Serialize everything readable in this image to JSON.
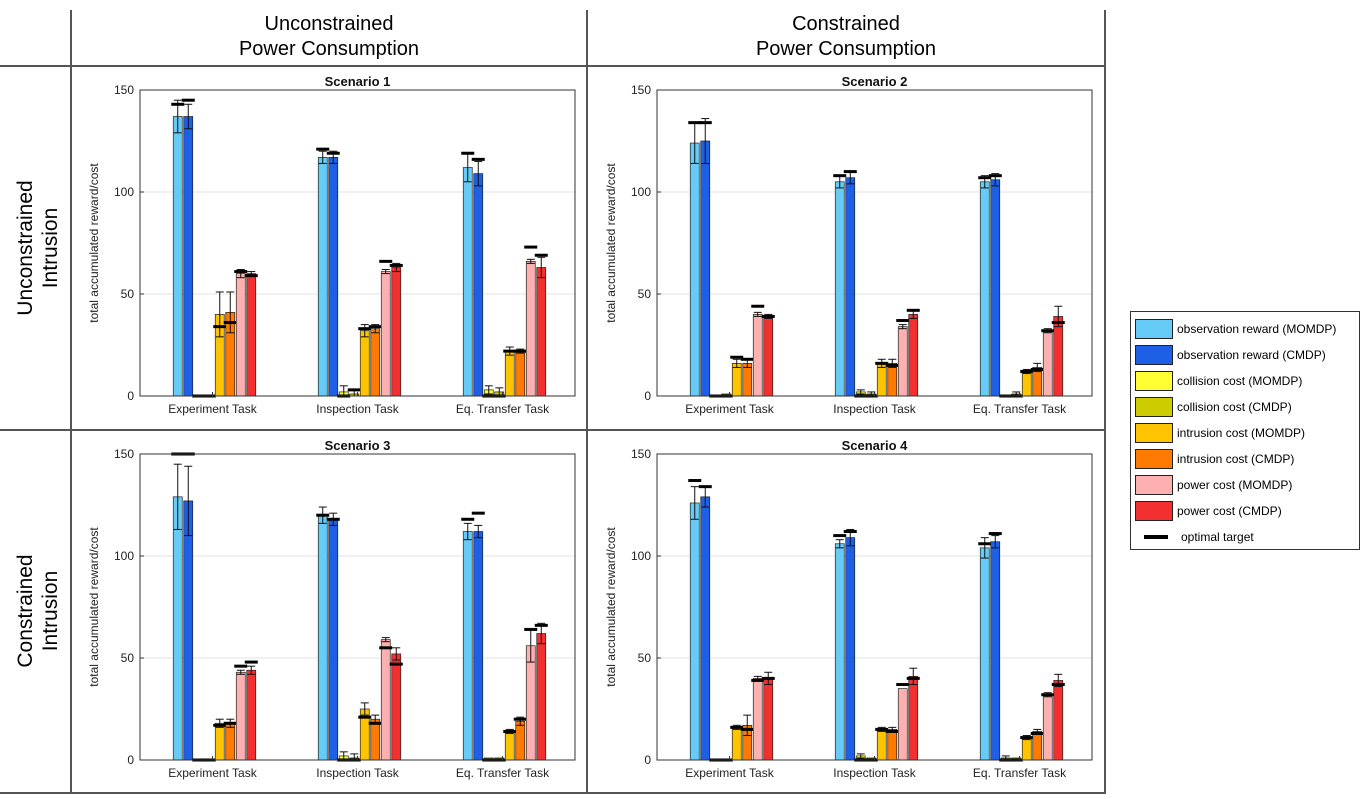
{
  "column_headers": [
    "Unconstrained\nPower Consumption",
    "Constrained\nPower Consumption"
  ],
  "row_headers": [
    "Unconstrained\nIntrusion",
    "Constrained\nIntrusion"
  ],
  "legend": {
    "items": [
      {
        "label": "observation reward (MOMDP)",
        "color": "#66ccf7"
      },
      {
        "label": "observation reward (CMDP)",
        "color": "#1e60e5"
      },
      {
        "label": "collision cost (MOMDP)",
        "color": "#ffff33"
      },
      {
        "label": "collision cost (CMDP)",
        "color": "#cccc00"
      },
      {
        "label": "intrusion cost (MOMDP)",
        "color": "#ffc400"
      },
      {
        "label": "intrusion cost (CMDP)",
        "color": "#ff7a00"
      },
      {
        "label": "power cost (MOMDP)",
        "color": "#fcb0b0"
      },
      {
        "label": "power cost (CMDP)",
        "color": "#f23030"
      }
    ],
    "target_label": "optimal target"
  },
  "chart_data": [
    {
      "type": "bar",
      "title": "Scenario 1",
      "ylabel": "total accumulated reward/cost",
      "xlabel": "",
      "ylim": [
        0,
        150
      ],
      "yticks": [
        0,
        50,
        100,
        150
      ],
      "grid": true,
      "categories": [
        "Experiment Task",
        "Inspection Task",
        "Eq. Transfer Task"
      ],
      "series": [
        {
          "name": "observation reward (MOMDP)",
          "values": [
            137,
            117,
            112
          ],
          "err": [
            8,
            3,
            7
          ]
        },
        {
          "name": "observation reward (CMDP)",
          "values": [
            137,
            117,
            109
          ],
          "err": [
            6,
            3,
            6
          ]
        },
        {
          "name": "collision cost (MOMDP)",
          "values": [
            0,
            2,
            3
          ],
          "err": [
            0,
            3,
            2
          ]
        },
        {
          "name": "collision cost (CMDP)",
          "values": [
            0,
            1,
            2
          ],
          "err": [
            0,
            2,
            2
          ]
        },
        {
          "name": "intrusion cost (MOMDP)",
          "values": [
            40,
            32,
            22
          ],
          "err": [
            11,
            3,
            2
          ]
        },
        {
          "name": "intrusion cost (CMDP)",
          "values": [
            41,
            33,
            22
          ],
          "err": [
            10,
            2,
            1
          ]
        },
        {
          "name": "power cost (MOMDP)",
          "values": [
            60,
            61,
            66
          ],
          "err": [
            2,
            1,
            1
          ]
        },
        {
          "name": "power cost (CMDP)",
          "values": [
            60,
            63,
            63
          ],
          "err": [
            1,
            2,
            5
          ]
        }
      ],
      "targets": [
        [
          143,
          121,
          119
        ],
        [
          145,
          119,
          116
        ],
        [
          0,
          0,
          0
        ],
        [
          0,
          3,
          0
        ],
        [
          34,
          33,
          22
        ],
        [
          36,
          34,
          22
        ],
        [
          61,
          66,
          73
        ],
        [
          59,
          64,
          69
        ]
      ]
    },
    {
      "type": "bar",
      "title": "Scenario 2",
      "ylabel": "total accumulated reward/cost",
      "xlabel": "",
      "ylim": [
        0,
        150
      ],
      "yticks": [
        0,
        50,
        100,
        150
      ],
      "grid": true,
      "categories": [
        "Experiment Task",
        "Inspection Task",
        "Eq. Transfer Task"
      ],
      "series": [
        {
          "name": "observation reward (MOMDP)",
          "values": [
            124,
            105,
            105
          ],
          "err": [
            10,
            3,
            3
          ]
        },
        {
          "name": "observation reward (CMDP)",
          "values": [
            125,
            107,
            106
          ],
          "err": [
            11,
            3,
            3
          ]
        },
        {
          "name": "collision cost (MOMDP)",
          "values": [
            0,
            2,
            0
          ],
          "err": [
            0,
            1,
            0
          ]
        },
        {
          "name": "collision cost (CMDP)",
          "values": [
            1,
            1,
            1
          ],
          "err": [
            0,
            1,
            1
          ]
        },
        {
          "name": "intrusion cost (MOMDP)",
          "values": [
            16,
            16,
            12
          ],
          "err": [
            2,
            2,
            1
          ]
        },
        {
          "name": "intrusion cost (CMDP)",
          "values": [
            16,
            16,
            14
          ],
          "err": [
            2,
            2,
            2
          ]
        },
        {
          "name": "power cost (MOMDP)",
          "values": [
            40,
            34,
            32
          ],
          "err": [
            1,
            1,
            1
          ]
        },
        {
          "name": "power cost (CMDP)",
          "values": [
            39,
            40,
            39
          ],
          "err": [
            1,
            2,
            5
          ]
        }
      ],
      "targets": [
        [
          134,
          108,
          107
        ],
        [
          134,
          110,
          108
        ],
        [
          0,
          0,
          0
        ],
        [
          0,
          0,
          0
        ],
        [
          19,
          16,
          12
        ],
        [
          18,
          15,
          13
        ],
        [
          44,
          37,
          32
        ],
        [
          39,
          42,
          36
        ]
      ]
    },
    {
      "type": "bar",
      "title": "Scenario 3",
      "ylabel": "total accumulated reward/cost",
      "xlabel": "",
      "ylim": [
        0,
        150
      ],
      "yticks": [
        0,
        50,
        100,
        150
      ],
      "grid": true,
      "categories": [
        "Experiment Task",
        "Inspection Task",
        "Eq. Transfer Task"
      ],
      "series": [
        {
          "name": "observation reward (MOMDP)",
          "values": [
            129,
            120,
            112
          ],
          "err": [
            16,
            4,
            4
          ]
        },
        {
          "name": "observation reward (CMDP)",
          "values": [
            127,
            118,
            112
          ],
          "err": [
            17,
            3,
            3
          ]
        },
        {
          "name": "collision cost (MOMDP)",
          "values": [
            0,
            2,
            1
          ],
          "err": [
            0,
            2,
            0
          ]
        },
        {
          "name": "collision cost (CMDP)",
          "values": [
            0,
            1,
            1
          ],
          "err": [
            0,
            2,
            0
          ]
        },
        {
          "name": "intrusion cost (MOMDP)",
          "values": [
            18,
            25,
            14
          ],
          "err": [
            2,
            3,
            1
          ]
        },
        {
          "name": "intrusion cost (CMDP)",
          "values": [
            18,
            20,
            19
          ],
          "err": [
            2,
            2,
            2
          ]
        },
        {
          "name": "power cost (MOMDP)",
          "values": [
            43,
            59,
            56
          ],
          "err": [
            1,
            1,
            8
          ]
        },
        {
          "name": "power cost (CMDP)",
          "values": [
            44,
            52,
            62
          ],
          "err": [
            2,
            3,
            5
          ]
        }
      ],
      "targets": [
        [
          150,
          120,
          118
        ],
        [
          150,
          118,
          121
        ],
        [
          0,
          0,
          0
        ],
        [
          0,
          0,
          0
        ],
        [
          17,
          21,
          14
        ],
        [
          18,
          18,
          20
        ],
        [
          46,
          55,
          64
        ],
        [
          48,
          47,
          66
        ]
      ]
    },
    {
      "type": "bar",
      "title": "Scenario 4",
      "ylabel": "total accumulated reward/cost",
      "xlabel": "",
      "ylim": [
        0,
        150
      ],
      "yticks": [
        0,
        50,
        100,
        150
      ],
      "grid": true,
      "categories": [
        "Experiment Task",
        "Inspection Task",
        "Eq. Transfer Task"
      ],
      "series": [
        {
          "name": "observation reward (MOMDP)",
          "values": [
            126,
            106,
            104
          ],
          "err": [
            8,
            2,
            5
          ]
        },
        {
          "name": "observation reward (CMDP)",
          "values": [
            129,
            109,
            107
          ],
          "err": [
            5,
            4,
            3
          ]
        },
        {
          "name": "collision cost (MOMDP)",
          "values": [
            0,
            2,
            1
          ],
          "err": [
            0,
            1,
            1
          ]
        },
        {
          "name": "collision cost (CMDP)",
          "values": [
            0,
            1,
            1
          ],
          "err": [
            0,
            0,
            0
          ]
        },
        {
          "name": "intrusion cost (MOMDP)",
          "values": [
            16,
            15,
            11
          ],
          "err": [
            1,
            1,
            1
          ]
        },
        {
          "name": "intrusion cost (CMDP)",
          "values": [
            17,
            15,
            14
          ],
          "err": [
            5,
            1,
            1
          ]
        },
        {
          "name": "power cost (MOMDP)",
          "values": [
            40,
            35,
            32
          ],
          "err": [
            1,
            0,
            1
          ]
        },
        {
          "name": "power cost (CMDP)",
          "values": [
            40,
            41,
            39
          ],
          "err": [
            3,
            4,
            3
          ]
        }
      ],
      "targets": [
        [
          137,
          110,
          106
        ],
        [
          134,
          112,
          111
        ],
        [
          0,
          0,
          0
        ],
        [
          0,
          0,
          0
        ],
        [
          16,
          15,
          11
        ],
        [
          15,
          14,
          13
        ],
        [
          39,
          37,
          32
        ],
        [
          40,
          40,
          37
        ]
      ]
    }
  ]
}
